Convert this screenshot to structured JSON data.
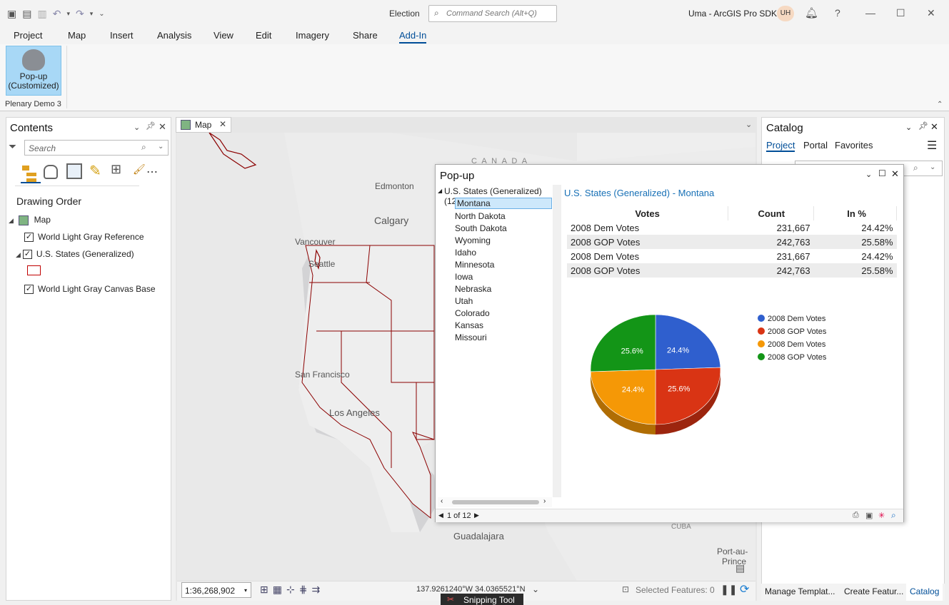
{
  "window": {
    "doc_title": "Election",
    "command_search_placeholder": "Command Search (Alt+Q)",
    "user_name": "Uma - ArcGIS Pro SDK",
    "user_initials": "UH",
    "help": "?"
  },
  "menu": [
    "Project",
    "Map",
    "Insert",
    "Analysis",
    "View",
    "Edit",
    "Imagery",
    "Share",
    "Add-In"
  ],
  "ribbon": {
    "button_label_1": "Pop-up",
    "button_label_2": "(Customized)",
    "group_label": "Plenary Demo 3"
  },
  "contents": {
    "title": "Contents",
    "search_placeholder": "Search",
    "section": "Drawing Order",
    "layers": {
      "map": "Map",
      "ref": "World Light Gray Reference",
      "states": "U.S. States (Generalized)",
      "base": "World Light Gray Canvas Base"
    }
  },
  "map": {
    "tab_label": "Map",
    "labels": {
      "canada": "C A N A D A",
      "edmonton": "Edmonton",
      "calgary": "Calgary",
      "vancouver": "Vancouver",
      "seattle": "Seattle",
      "sf": "San Francisco",
      "la": "Los Angeles",
      "guadalajara": "Guadalajara",
      "cuba": "CUBA",
      "portau": "Port-au-",
      "prince": "Prince"
    },
    "scale": "1:36,268,902",
    "coords": "137.9261240°W 34.0365521°N",
    "selected_features": "Selected Features: 0"
  },
  "catalog": {
    "title": "Catalog",
    "tabs": [
      "Project",
      "Portal",
      "Favorites"
    ],
    "bottom_tabs": [
      "Manage Templat...",
      "Create Featur...",
      "Catalog"
    ]
  },
  "popup": {
    "title": "Pop-up",
    "layer_header": "U.S. States (Generalized) (12)",
    "states": [
      "Montana",
      "North Dakota",
      "South Dakota",
      "Wyoming",
      "Idaho",
      "Minnesota",
      "Iowa",
      "Nebraska",
      "Utah",
      "Colorado",
      "Kansas",
      "Missouri"
    ],
    "feature_title": "U.S. States (Generalized) - Montana",
    "table": {
      "headers": [
        "Votes",
        "Count",
        "In %"
      ],
      "rows": [
        [
          "2008 Dem Votes",
          "231,667",
          "24.42%"
        ],
        [
          "2008 GOP Votes",
          "242,763",
          "25.58%"
        ],
        [
          "2008 Dem Votes",
          "231,667",
          "24.42%"
        ],
        [
          "2008 GOP Votes",
          "242,763",
          "25.58%"
        ]
      ]
    },
    "pager": "1 of 12"
  },
  "chart_data": {
    "type": "pie",
    "title": "",
    "series": [
      {
        "name": "2008 Dem Votes",
        "value": 24.4,
        "label": "24.4%",
        "color": "#2f5fce"
      },
      {
        "name": "2008 GOP Votes",
        "value": 25.6,
        "label": "25.6%",
        "color": "#d93414"
      },
      {
        "name": "2008 Dem Votes",
        "value": 24.4,
        "label": "24.4%",
        "color": "#f59806"
      },
      {
        "name": "2008 GOP Votes",
        "value": 25.6,
        "label": "25.6%",
        "color": "#139517"
      }
    ],
    "legend_position": "right"
  },
  "taskbar": {
    "snipping": "Snipping Tool"
  }
}
